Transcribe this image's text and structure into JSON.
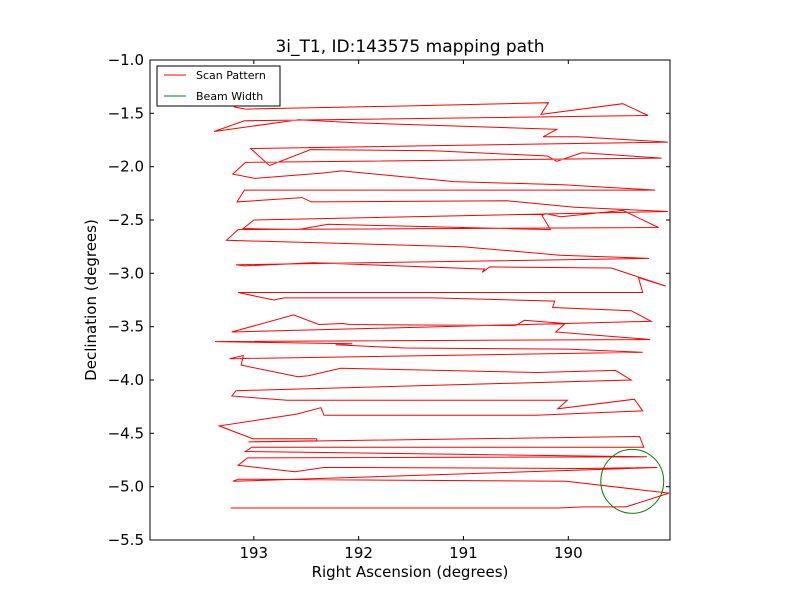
{
  "chart_data": {
    "type": "line",
    "title": "3i_T1, ID:143575 mapping path",
    "xlabel": "Right Ascension (degrees)",
    "ylabel": "Declination (degrees)",
    "xlim": [
      193.99,
      189.03
    ],
    "ylim": [
      -5.5,
      -1.0
    ],
    "x_inverted": true,
    "xticks": [
      193,
      192,
      191,
      190
    ],
    "xtick_labels": [
      "193",
      "192",
      "191",
      "190"
    ],
    "yticks": [
      -1.0,
      -1.5,
      -2.0,
      -2.5,
      -3.0,
      -3.5,
      -4.0,
      -4.5,
      -5.0,
      -5.5
    ],
    "ytick_labels": [
      "−1.0",
      "−1.5",
      "−2.0",
      "−2.5",
      "−3.0",
      "−3.5",
      "−4.0",
      "−4.5",
      "−5.0",
      "−5.5"
    ],
    "grid": false,
    "legend_position": "top-left",
    "series": [
      {
        "name": "Scan Pattern",
        "color": "#ff0000",
        "points": [
          [
            193.22,
            -5.2
          ],
          [
            190.09,
            -5.2
          ],
          [
            189.86,
            -5.19
          ],
          [
            189.45,
            -5.19
          ],
          [
            189.04,
            -5.06
          ],
          [
            190.02,
            -4.95
          ],
          [
            193.06,
            -4.93
          ],
          [
            193.15,
            -4.93
          ],
          [
            193.2,
            -4.95
          ],
          [
            189.15,
            -4.82
          ],
          [
            189.86,
            -4.83
          ],
          [
            192.1,
            -4.82
          ],
          [
            192.33,
            -4.82
          ],
          [
            192.61,
            -4.86
          ],
          [
            193.15,
            -4.8
          ],
          [
            193.06,
            -4.73
          ],
          [
            189.25,
            -4.72
          ],
          [
            193.08,
            -4.67
          ],
          [
            193.02,
            -4.63
          ],
          [
            189.28,
            -4.63
          ],
          [
            189.32,
            -4.53
          ],
          [
            193.05,
            -4.58
          ],
          [
            192.4,
            -4.57
          ],
          [
            192.4,
            -4.55
          ],
          [
            193.01,
            -4.55
          ],
          [
            193.33,
            -4.43
          ],
          [
            192.59,
            -4.32
          ],
          [
            192.36,
            -4.26
          ],
          [
            192.33,
            -4.33
          ],
          [
            190.31,
            -4.33
          ],
          [
            189.29,
            -4.29
          ],
          [
            189.37,
            -4.18
          ],
          [
            190.1,
            -4.27
          ],
          [
            190.01,
            -4.19
          ],
          [
            192.68,
            -4.19
          ],
          [
            193.21,
            -4.15
          ],
          [
            193.17,
            -4.1
          ],
          [
            189.4,
            -4.0
          ],
          [
            189.55,
            -3.91
          ],
          [
            190.3,
            -3.93
          ],
          [
            192.17,
            -3.89
          ],
          [
            192.48,
            -3.96
          ],
          [
            192.58,
            -3.97
          ],
          [
            193.12,
            -3.86
          ],
          [
            193.1,
            -3.77
          ],
          [
            193.23,
            -3.8
          ],
          [
            189.29,
            -3.74
          ],
          [
            190.01,
            -3.71
          ],
          [
            191.56,
            -3.7
          ],
          [
            192.22,
            -3.67
          ],
          [
            192.06,
            -3.66
          ],
          [
            193.37,
            -3.64
          ],
          [
            189.22,
            -3.62
          ],
          [
            190.12,
            -3.55
          ],
          [
            190.03,
            -3.47
          ],
          [
            190.42,
            -3.44
          ],
          [
            190.5,
            -3.49
          ],
          [
            192.09,
            -3.48
          ],
          [
            192.15,
            -3.47
          ],
          [
            192.38,
            -3.48
          ],
          [
            192.62,
            -3.39
          ],
          [
            193.21,
            -3.55
          ],
          [
            189.21,
            -3.45
          ],
          [
            189.4,
            -3.35
          ],
          [
            190.15,
            -3.32
          ],
          [
            190.13,
            -3.26
          ],
          [
            191.29,
            -3.23
          ],
          [
            192.71,
            -3.23
          ],
          [
            192.81,
            -3.25
          ],
          [
            193.15,
            -3.18
          ],
          [
            189.29,
            -3.18
          ],
          [
            189.33,
            -3.04
          ],
          [
            189.07,
            -3.12
          ],
          [
            189.59,
            -2.95
          ],
          [
            190.75,
            -2.94
          ],
          [
            190.82,
            -2.99
          ],
          [
            190.8,
            -2.96
          ],
          [
            192.43,
            -2.9
          ],
          [
            193.09,
            -2.93
          ],
          [
            193.17,
            -2.92
          ],
          [
            189.23,
            -2.86
          ],
          [
            189.52,
            -2.85
          ],
          [
            190.08,
            -2.83
          ],
          [
            191.01,
            -2.75
          ],
          [
            192.12,
            -2.72
          ],
          [
            193.26,
            -2.69
          ],
          [
            193.15,
            -2.59
          ],
          [
            189.14,
            -2.57
          ],
          [
            189.48,
            -2.41
          ],
          [
            190.07,
            -2.47
          ],
          [
            190.22,
            -2.44
          ],
          [
            190.25,
            -2.46
          ],
          [
            190.17,
            -2.59
          ],
          [
            192.29,
            -2.54
          ],
          [
            192.58,
            -2.59
          ],
          [
            193.1,
            -2.58
          ],
          [
            193.0,
            -2.5
          ],
          [
            189.05,
            -2.42
          ],
          [
            189.94,
            -2.38
          ],
          [
            190.58,
            -2.32
          ],
          [
            192.45,
            -2.33
          ],
          [
            192.54,
            -2.29
          ],
          [
            193.16,
            -2.33
          ],
          [
            193.09,
            -2.22
          ],
          [
            189.17,
            -2.22
          ],
          [
            190.05,
            -2.17
          ],
          [
            191.09,
            -2.14
          ],
          [
            192.16,
            -2.04
          ],
          [
            192.35,
            -2.06
          ],
          [
            192.99,
            -2.11
          ],
          [
            193.2,
            -2.07
          ],
          [
            193.08,
            -1.96
          ],
          [
            189.11,
            -1.92
          ],
          [
            189.87,
            -1.87
          ],
          [
            190.11,
            -1.95
          ],
          [
            190.2,
            -1.9
          ],
          [
            191.29,
            -1.85
          ],
          [
            192.46,
            -1.84
          ],
          [
            192.85,
            -1.99
          ],
          [
            193.03,
            -1.83
          ],
          [
            189.05,
            -1.77
          ],
          [
            189.91,
            -1.72
          ],
          [
            190.24,
            -1.72
          ],
          [
            190.11,
            -1.65
          ],
          [
            192.01,
            -1.59
          ],
          [
            192.57,
            -1.56
          ],
          [
            193.38,
            -1.67
          ],
          [
            193.09,
            -1.57
          ],
          [
            189.24,
            -1.52
          ],
          [
            189.48,
            -1.41
          ],
          [
            190.26,
            -1.51
          ],
          [
            190.19,
            -1.4
          ],
          [
            191.52,
            -1.43
          ],
          [
            193.08,
            -1.46
          ],
          [
            193.19,
            -1.44
          ]
        ]
      },
      {
        "name": "Beam Width",
        "color": "#008000",
        "shape": "circle",
        "center": [
          189.39,
          -4.95
        ],
        "radius": 0.3
      }
    ]
  }
}
